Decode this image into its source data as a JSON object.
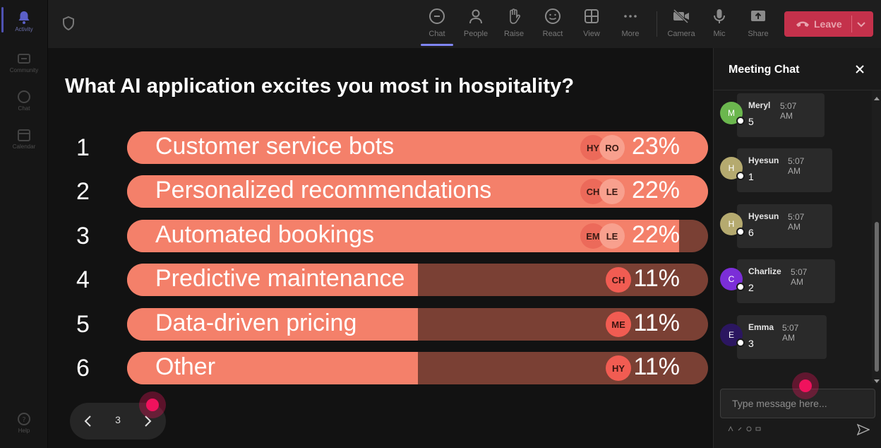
{
  "rail": {
    "items": [
      {
        "label": "Activity",
        "icon": "bell-icon",
        "active": true
      },
      {
        "label": "Community",
        "icon": "community-icon"
      },
      {
        "label": "Chat",
        "icon": "chat-icon"
      },
      {
        "label": "Calendar",
        "icon": "calendar-icon"
      }
    ],
    "help": "Help"
  },
  "toolbar": {
    "chat": "Chat",
    "people": "People",
    "raise": "Raise",
    "react": "React",
    "view": "View",
    "more": "More",
    "camera": "Camera",
    "mic": "Mic",
    "share": "Share",
    "leave": "Leave"
  },
  "poll": {
    "question": "What AI application excites you most in hospitality?",
    "rows": [
      {
        "num": "1",
        "label": "Customer service bots",
        "percent": "23%",
        "fill": 1.0,
        "avatars": [
          "HY",
          "RO"
        ]
      },
      {
        "num": "2",
        "label": "Personalized recommendations",
        "percent": "22%",
        "fill": 1.0,
        "avatars": [
          "CH",
          "LE"
        ]
      },
      {
        "num": "3",
        "label": "Automated bookings",
        "percent": "22%",
        "fill": 0.95,
        "avatars": [
          "EM",
          "LE"
        ]
      },
      {
        "num": "4",
        "label": "Predictive maintenance",
        "percent": "11%",
        "fill": 0.5,
        "avatars": [
          "CH"
        ]
      },
      {
        "num": "5",
        "label": "Data-driven pricing",
        "percent": "11%",
        "fill": 0.5,
        "avatars": [
          "ME"
        ]
      },
      {
        "num": "6",
        "label": "Other",
        "percent": "11%",
        "fill": 0.5,
        "avatars": [
          "HY"
        ]
      }
    ]
  },
  "pager": {
    "page": "3"
  },
  "chat": {
    "title": "Meeting Chat",
    "messages": [
      {
        "initial": "M",
        "name": "Meryl",
        "time": "5:07 AM",
        "text": "5",
        "color": "#6bb74e"
      },
      {
        "initial": "H",
        "name": "Hyesun",
        "time": "5:07 AM",
        "text": "1",
        "color": "#b5aa6f"
      },
      {
        "initial": "H",
        "name": "Hyesun",
        "time": "5:07 AM",
        "text": "6",
        "color": "#b5aa6f"
      },
      {
        "initial": "C",
        "name": "Charlize",
        "time": "5:07 AM",
        "text": "2",
        "color": "#7b2ed8"
      },
      {
        "initial": "E",
        "name": "Emma",
        "time": "5:07 AM",
        "text": "3",
        "color": "#2b1660"
      }
    ],
    "input_placeholder": "Type message here..."
  },
  "colors": {
    "accent": "#7f85f5",
    "leave": "#c4314b",
    "bar_fill": "#f4806a",
    "bar_track": "#7a4034"
  }
}
